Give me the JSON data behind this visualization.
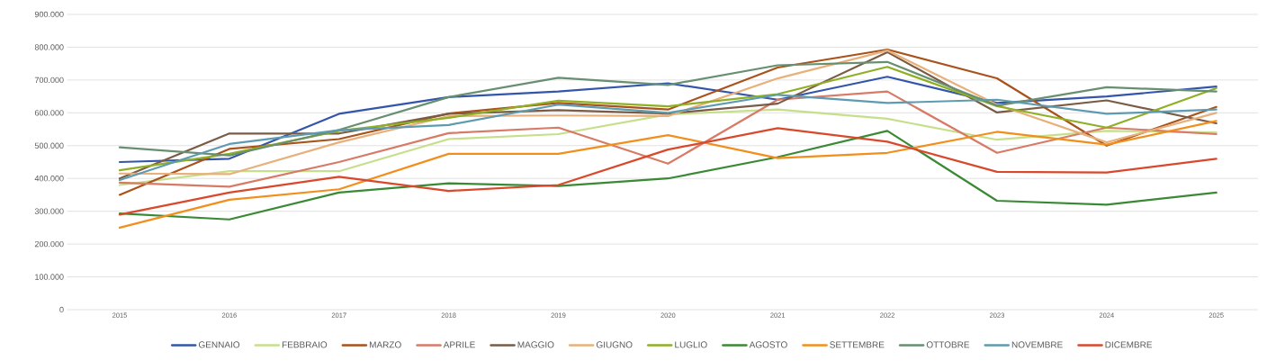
{
  "chart_data": {
    "type": "line",
    "categories": [
      "2015",
      "2016",
      "2017",
      "2018",
      "2019",
      "2020",
      "2021",
      "2022",
      "2023",
      "2024",
      "2025"
    ],
    "series": [
      {
        "name": "GENNAIO",
        "color": "#3355aa",
        "values": [
          450000,
          460000,
          597000,
          648000,
          665000,
          690000,
          640000,
          710000,
          630000,
          650000,
          680000
        ]
      },
      {
        "name": "FEBBRAIO",
        "color": "#c5df8b",
        "values": [
          380000,
          422000,
          422000,
          520000,
          535000,
          595000,
          610000,
          582000,
          518000,
          545000,
          540000
        ]
      },
      {
        "name": "MARZO",
        "color": "#a9521b",
        "values": [
          350000,
          490000,
          520000,
          598000,
          630000,
          610000,
          738000,
          793000,
          705000,
          500000,
          618000
        ]
      },
      {
        "name": "APRILE",
        "color": "#d77a66",
        "values": [
          387000,
          375000,
          450000,
          538000,
          555000,
          445000,
          640000,
          665000,
          478000,
          555000,
          535000
        ]
      },
      {
        "name": "MAGGIO",
        "color": "#7a5c45",
        "values": [
          400000,
          537000,
          537000,
          597000,
          608000,
          598000,
          628000,
          785000,
          601000,
          638000,
          568000
        ]
      },
      {
        "name": "GIUGNO",
        "color": "#e8b07a",
        "values": [
          415000,
          413000,
          510000,
          590000,
          592000,
          590000,
          705000,
          790000,
          625000,
          510000,
          600000
        ]
      },
      {
        "name": "LUGLIO",
        "color": "#8faf24",
        "values": [
          425000,
          475000,
          545000,
          585000,
          637000,
          620000,
          657000,
          740000,
          620000,
          555000,
          675000
        ]
      },
      {
        "name": "AGOSTO",
        "color": "#3a8a35",
        "values": [
          293000,
          275000,
          357000,
          385000,
          377000,
          400000,
          465000,
          545000,
          332000,
          320000,
          357000
        ]
      },
      {
        "name": "SETTEMBRE",
        "color": "#f28f1c",
        "values": [
          250000,
          335000,
          367000,
          475000,
          475000,
          532000,
          462000,
          478000,
          542000,
          503000,
          575000
        ]
      },
      {
        "name": "OTTOBRE",
        "color": "#678f70",
        "values": [
          495000,
          470000,
          548000,
          648000,
          707000,
          685000,
          745000,
          755000,
          622000,
          678000,
          665000
        ]
      },
      {
        "name": "NOVEMBRE",
        "color": "#5f9bb0",
        "values": [
          395000,
          505000,
          547000,
          563000,
          625000,
          600000,
          655000,
          630000,
          640000,
          597000,
          610000
        ]
      },
      {
        "name": "DICEMBRE",
        "color": "#d9482b",
        "values": [
          290000,
          357000,
          405000,
          362000,
          380000,
          488000,
          553000,
          512000,
          420000,
          418000,
          460000
        ]
      }
    ],
    "ylim": [
      0,
      900000
    ],
    "yticks": [
      0,
      {
        "value": 100000,
        "label": "100.000"
      },
      {
        "value": 200000,
        "label": "200.000"
      },
      {
        "value": 300000,
        "label": "300.000"
      },
      {
        "value": 400000,
        "label": "400.000"
      },
      {
        "value": 500000,
        "label": "500.000"
      },
      {
        "value": 600000,
        "label": "600.000"
      },
      {
        "value": 700000,
        "label": "700.000"
      },
      {
        "value": 800000,
        "label": "800.000"
      },
      {
        "value": 900000,
        "label": "900.000"
      }
    ],
    "grid": "y",
    "legend": "bottom",
    "marker": "none",
    "line_style": "solid"
  }
}
